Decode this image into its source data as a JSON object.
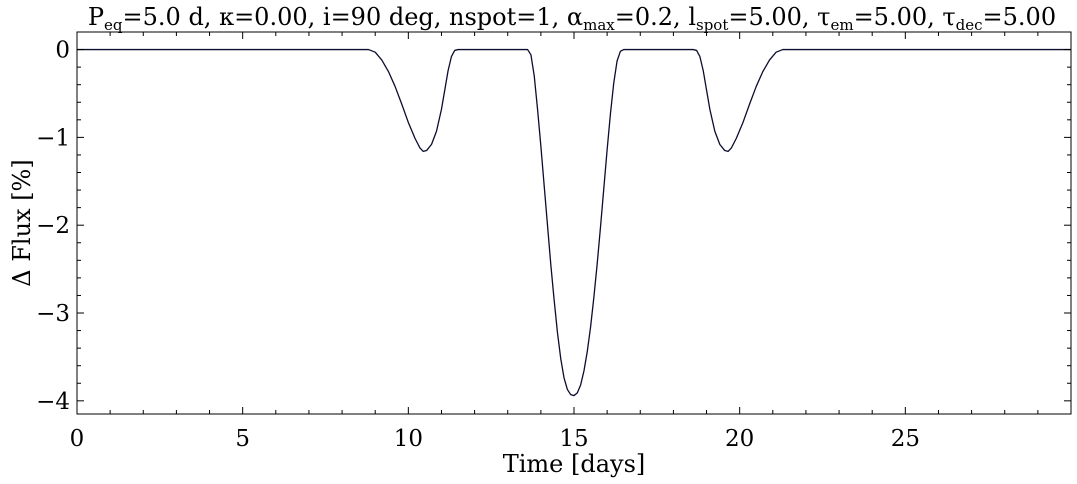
{
  "chart_data": {
    "type": "line",
    "title": {
      "segments": [
        {
          "text": "P"
        },
        {
          "text": "eq",
          "sub": true
        },
        {
          "text": "=5.0 d, "
        },
        {
          "text": "κ"
        },
        {
          "text": "=0.00, "
        },
        {
          "text": "i"
        },
        {
          "text": "=90 deg, nspot=1, "
        },
        {
          "text": "α"
        },
        {
          "text": "max",
          "sub": true
        },
        {
          "text": "=0.2, "
        },
        {
          "text": "l"
        },
        {
          "text": "spot",
          "sub": true
        },
        {
          "text": "=5.00, "
        },
        {
          "text": "τ"
        },
        {
          "text": "em",
          "sub": true
        },
        {
          "text": "=5.00, "
        },
        {
          "text": "τ"
        },
        {
          "text": "dec",
          "sub": true
        },
        {
          "text": "=5.00"
        }
      ]
    },
    "xlabel": "Time [days]",
    "ylabel": "Δ Flux [%]",
    "xlim": [
      0,
      30
    ],
    "ylim": [
      -4.15,
      0.2
    ],
    "x_ticks": [
      0,
      5,
      10,
      15,
      20,
      25
    ],
    "x_tick_labels": [
      "0",
      "5",
      "10",
      "15",
      "20",
      "25"
    ],
    "y_ticks": [
      0,
      -1,
      -2,
      -3,
      -4
    ],
    "y_tick_labels": [
      "0",
      "−1",
      "−2",
      "−3",
      "−4"
    ],
    "x_minor_step": 1,
    "y_minor_step": 0.2,
    "grid": false,
    "line_color": "#0b0d2e",
    "series": [
      {
        "points": [
          [
            0,
            0
          ],
          [
            8.8,
            0
          ],
          [
            9.0,
            -0.03
          ],
          [
            9.2,
            -0.12
          ],
          [
            9.4,
            -0.25
          ],
          [
            9.6,
            -0.42
          ],
          [
            9.8,
            -0.62
          ],
          [
            10.0,
            -0.83
          ],
          [
            10.2,
            -1.01
          ],
          [
            10.35,
            -1.12
          ],
          [
            10.45,
            -1.16
          ],
          [
            10.55,
            -1.15
          ],
          [
            10.7,
            -1.08
          ],
          [
            10.85,
            -0.93
          ],
          [
            11.0,
            -0.68
          ],
          [
            11.1,
            -0.46
          ],
          [
            11.2,
            -0.24
          ],
          [
            11.3,
            -0.08
          ],
          [
            11.4,
            -0.01
          ],
          [
            11.5,
            0
          ],
          [
            13.6,
            0
          ],
          [
            13.7,
            -0.06
          ],
          [
            13.8,
            -0.3
          ],
          [
            13.9,
            -0.68
          ],
          [
            14.0,
            -1.1
          ],
          [
            14.1,
            -1.55
          ],
          [
            14.2,
            -2.0
          ],
          [
            14.3,
            -2.45
          ],
          [
            14.4,
            -2.85
          ],
          [
            14.5,
            -3.22
          ],
          [
            14.6,
            -3.52
          ],
          [
            14.7,
            -3.74
          ],
          [
            14.8,
            -3.87
          ],
          [
            14.9,
            -3.93
          ],
          [
            15.0,
            -3.94
          ],
          [
            15.1,
            -3.91
          ],
          [
            15.2,
            -3.82
          ],
          [
            15.3,
            -3.66
          ],
          [
            15.4,
            -3.44
          ],
          [
            15.5,
            -3.16
          ],
          [
            15.6,
            -2.82
          ],
          [
            15.7,
            -2.44
          ],
          [
            15.8,
            -2.02
          ],
          [
            15.9,
            -1.58
          ],
          [
            16.0,
            -1.14
          ],
          [
            16.1,
            -0.73
          ],
          [
            16.2,
            -0.38
          ],
          [
            16.3,
            -0.13
          ],
          [
            16.4,
            -0.02
          ],
          [
            16.5,
            0
          ],
          [
            18.6,
            0
          ],
          [
            18.7,
            -0.01
          ],
          [
            18.8,
            -0.08
          ],
          [
            18.9,
            -0.24
          ],
          [
            19.0,
            -0.46
          ],
          [
            19.1,
            -0.68
          ],
          [
            19.25,
            -0.93
          ],
          [
            19.4,
            -1.08
          ],
          [
            19.55,
            -1.15
          ],
          [
            19.65,
            -1.16
          ],
          [
            19.75,
            -1.12
          ],
          [
            19.9,
            -1.01
          ],
          [
            20.1,
            -0.83
          ],
          [
            20.3,
            -0.62
          ],
          [
            20.5,
            -0.42
          ],
          [
            20.7,
            -0.25
          ],
          [
            20.9,
            -0.12
          ],
          [
            21.1,
            -0.03
          ],
          [
            21.3,
            0
          ],
          [
            30,
            0
          ]
        ]
      }
    ]
  }
}
